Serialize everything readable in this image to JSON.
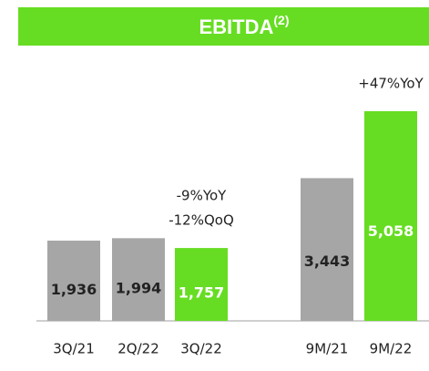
{
  "chart_data": {
    "type": "bar",
    "title": "EBITDA",
    "title_superscript": "(2)",
    "categories": [
      "3Q/21",
      "2Q/22",
      "3Q/22",
      "9M/21",
      "9M/22"
    ],
    "values": [
      1936,
      1994,
      1757,
      3443,
      5058
    ],
    "value_labels": [
      "1,936",
      "1,994",
      "1,757",
      "3,443",
      "5,058"
    ],
    "colors": [
      "#a6a6a6",
      "#a6a6a6",
      "#66dd22",
      "#a6a6a6",
      "#66dd22"
    ],
    "label_colors": [
      "#222222",
      "#222222",
      "#ffffff",
      "#222222",
      "#ffffff"
    ],
    "annotations": [
      {
        "text": "-9%YoY",
        "category": 2
      },
      {
        "text": "-12%QoQ",
        "category": 2
      },
      {
        "text": "+47%YoY",
        "category": 4
      }
    ]
  }
}
